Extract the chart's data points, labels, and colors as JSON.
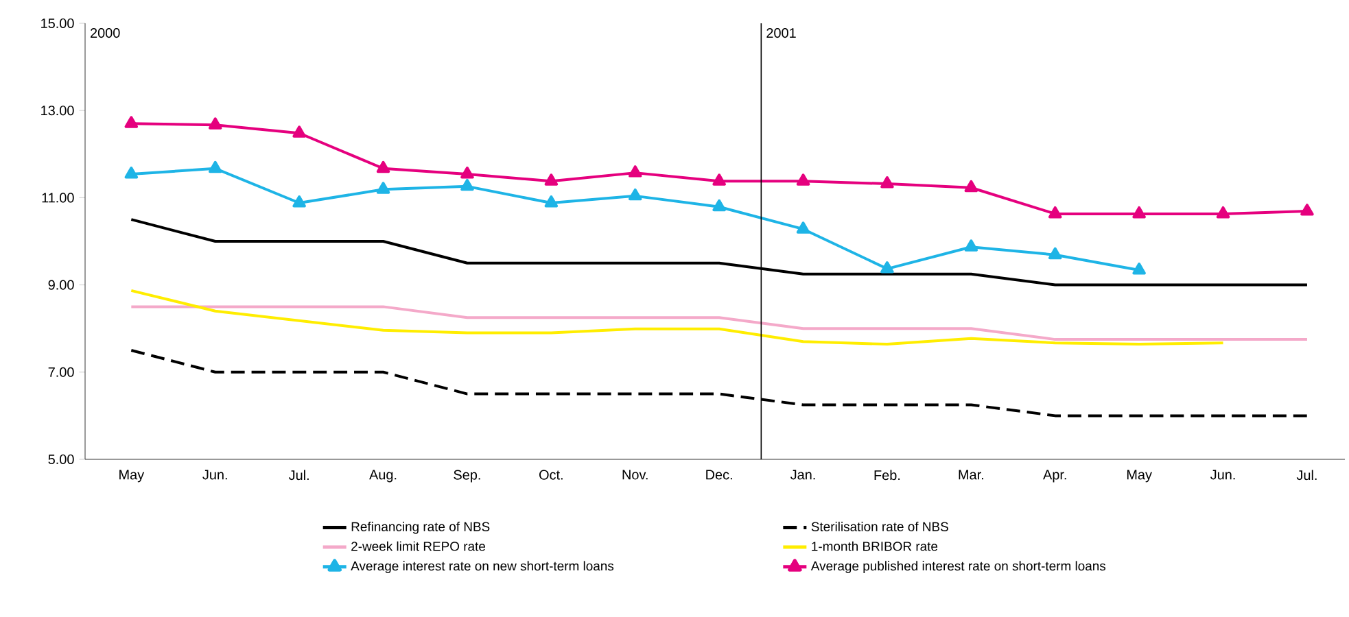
{
  "chart_data": {
    "type": "line",
    "categories": [
      "May",
      "Jun.",
      "Jul.",
      "Aug.",
      "Sep.",
      "Oct.",
      "Nov.",
      "Dec.",
      "Jan.",
      "Feb.",
      "Mar.",
      "Apr.",
      "May",
      "Jun.",
      "Jul."
    ],
    "series": [
      {
        "name": "Refinancing rate of NBS",
        "color": "#000000",
        "line_style": "solid",
        "marker": "none",
        "values": [
          10.5,
          10.0,
          10.0,
          10.0,
          9.5,
          9.5,
          9.5,
          9.5,
          9.25,
          9.25,
          9.25,
          9.0,
          9.0,
          9.0,
          9.0
        ]
      },
      {
        "name": "Sterilisation rate of NBS",
        "color": "#000000",
        "line_style": "dashed",
        "marker": "none",
        "values": [
          7.5,
          7.0,
          7.0,
          7.0,
          6.5,
          6.5,
          6.5,
          6.5,
          6.25,
          6.25,
          6.25,
          6.0,
          6.0,
          6.0,
          6.0
        ]
      },
      {
        "name": "2-week limit REPO rate",
        "color": "#f4a9c9",
        "line_style": "solid",
        "marker": "none",
        "values": [
          8.5,
          8.5,
          8.5,
          8.5,
          8.25,
          8.25,
          8.25,
          8.25,
          8.0,
          8.0,
          8.0,
          7.75,
          7.75,
          7.75,
          7.75
        ]
      },
      {
        "name": "1-month BRIBOR rate",
        "color": "#ffed00",
        "line_style": "solid",
        "marker": "none",
        "values": [
          8.87,
          8.4,
          8.18,
          7.96,
          7.9,
          7.9,
          7.99,
          7.99,
          7.7,
          7.64,
          7.77,
          7.67,
          7.64,
          7.67,
          null
        ]
      },
      {
        "name": "Average interest rate on new short-term loans",
        "color": "#1eb4e6",
        "line_style": "solid",
        "marker": "triangle",
        "values": [
          11.54,
          11.67,
          10.88,
          11.19,
          11.26,
          10.88,
          11.04,
          10.79,
          10.28,
          9.37,
          9.87,
          9.69,
          9.34,
          null,
          null
        ]
      },
      {
        "name": "Average published interest rate on short-term loans",
        "color": "#e5007e",
        "line_style": "solid",
        "marker": "triangle",
        "values": [
          12.7,
          12.67,
          12.48,
          11.67,
          11.54,
          11.38,
          11.57,
          11.38,
          11.38,
          11.32,
          11.23,
          10.63,
          10.63,
          10.63,
          10.69
        ]
      }
    ],
    "ylim": [
      5,
      15
    ],
    "yticks": [
      {
        "value": 5,
        "label": "5.00"
      },
      {
        "value": 7,
        "label": "7.00"
      },
      {
        "value": 9,
        "label": "9.00"
      },
      {
        "value": 11,
        "label": "11.00"
      },
      {
        "value": 13,
        "label": "13.00"
      },
      {
        "value": 15,
        "label": "15.00"
      }
    ],
    "annotations": [
      "2000",
      "2001"
    ],
    "grid": false,
    "legend": "bottom"
  }
}
